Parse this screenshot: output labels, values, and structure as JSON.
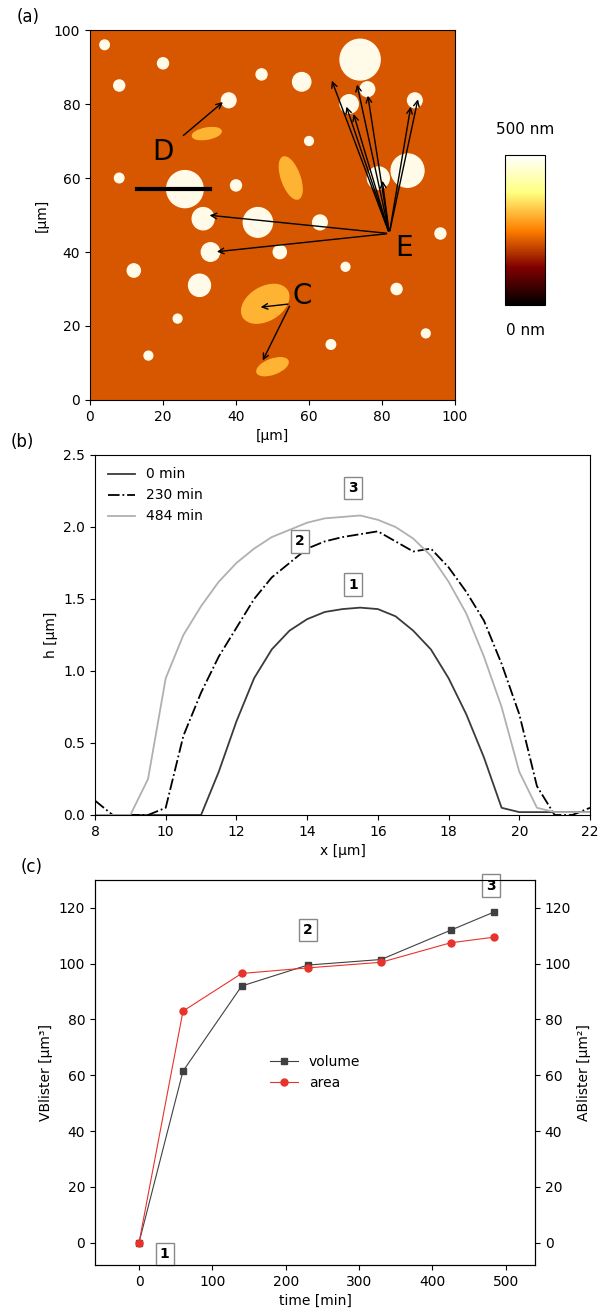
{
  "chart_data": [
    {
      "type": "image",
      "title": "(a)",
      "xlabel": "[µm]",
      "ylabel": "[µm]",
      "xlim": [
        0,
        100
      ],
      "ylim": [
        0,
        100
      ],
      "xticks": [
        0,
        20,
        40,
        60,
        80,
        100
      ],
      "yticks": [
        0,
        20,
        40,
        60,
        80,
        100
      ],
      "colorbar_range": [
        0,
        500
      ],
      "colorbar_labels": [
        "0 nm",
        "500 nm"
      ],
      "annotations": [
        "D",
        "C",
        "E"
      ]
    },
    {
      "type": "line",
      "title": "(b)",
      "xlabel": "x [µm]",
      "ylabel": "h [µm]",
      "xlim": [
        8,
        22
      ],
      "ylim": [
        0.0,
        2.5
      ],
      "xticks": [
        8,
        10,
        12,
        14,
        16,
        18,
        20,
        22
      ],
      "yticks": [
        0.0,
        0.5,
        1.0,
        1.5,
        2.0,
        2.5
      ],
      "legend": "upper left",
      "annotations": [
        "1",
        "2",
        "3"
      ],
      "x": [
        8,
        8.5,
        9,
        9.5,
        10,
        10.5,
        11,
        11.5,
        12,
        12.5,
        13,
        13.5,
        14,
        14.5,
        15,
        15.5,
        16,
        16.5,
        17,
        17.5,
        18,
        18.5,
        19,
        19.5,
        20,
        20.5,
        21,
        21.5,
        22
      ],
      "series": [
        {
          "name": "0 min",
          "color": "#3a3a3a",
          "line_style": "solid",
          "values": [
            0.0,
            0.0,
            0.0,
            0.0,
            0.0,
            0.0,
            0.0,
            0.3,
            0.65,
            0.95,
            1.15,
            1.28,
            1.36,
            1.41,
            1.43,
            1.44,
            1.43,
            1.38,
            1.28,
            1.15,
            0.95,
            0.7,
            0.4,
            0.05,
            0.02,
            0.02,
            0.02,
            0.02,
            0.02
          ]
        },
        {
          "name": "230 min",
          "color": "#000000",
          "line_style": "dashdot",
          "values": [
            0.1,
            0.0,
            0.0,
            0.0,
            0.05,
            0.55,
            0.85,
            1.1,
            1.3,
            1.5,
            1.65,
            1.75,
            1.85,
            1.9,
            1.93,
            1.95,
            1.97,
            1.9,
            1.83,
            1.85,
            1.72,
            1.55,
            1.35,
            1.05,
            0.7,
            0.2,
            0.0,
            0.0,
            0.05
          ]
        },
        {
          "name": "484 min",
          "color": "#b0b0b0",
          "line_style": "solid",
          "values": [
            0.0,
            0.0,
            0.0,
            0.25,
            0.95,
            1.25,
            1.45,
            1.62,
            1.75,
            1.85,
            1.93,
            1.98,
            2.03,
            2.06,
            2.07,
            2.08,
            2.05,
            2.0,
            1.92,
            1.8,
            1.62,
            1.4,
            1.1,
            0.75,
            0.3,
            0.05,
            0.02,
            0.02,
            0.02
          ]
        }
      ]
    },
    {
      "type": "line",
      "title": "(c)",
      "xlabel": "time [min]",
      "ylabel": "VBlister [µm³]",
      "y2label": "ABlister [µm²]",
      "xlim": [
        -60,
        540
      ],
      "ylim": [
        -8,
        130
      ],
      "y2lim": [
        -8,
        130
      ],
      "xticks": [
        0,
        100,
        200,
        300,
        400,
        500
      ],
      "yticks": [
        0,
        20,
        40,
        60,
        80,
        100,
        120
      ],
      "y2ticks": [
        0,
        20,
        40,
        60,
        80,
        100,
        120
      ],
      "legend": "center",
      "annotations": [
        "1",
        "2",
        "3"
      ],
      "x": [
        0,
        60,
        140,
        230,
        330,
        425,
        484
      ],
      "series": [
        {
          "name": "volume",
          "color": "#404040",
          "marker": "square",
          "values": [
            0,
            61.5,
            92,
            99.5,
            101.5,
            112,
            118.5
          ]
        },
        {
          "name": "area",
          "color": "#e8322c",
          "marker": "circle",
          "axis": "y2",
          "values": [
            0,
            83,
            96.5,
            98.5,
            100.5,
            107.5,
            109.5
          ]
        }
      ]
    }
  ]
}
